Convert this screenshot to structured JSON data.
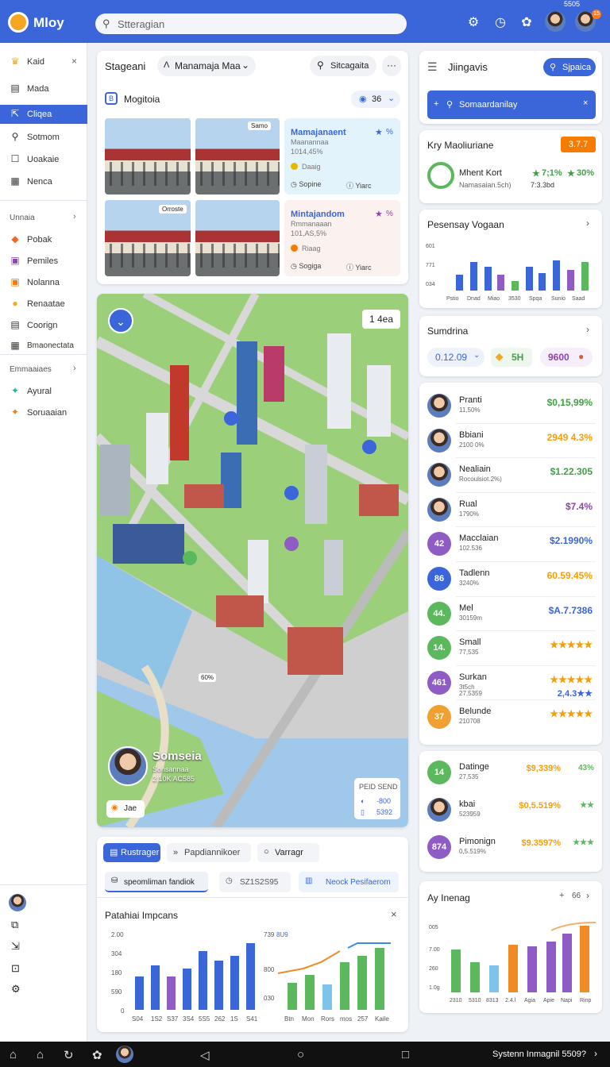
{
  "status": {
    "battery": "5505"
  },
  "app": {
    "name": "Mloy",
    "search_placeholder": "Stteragian"
  },
  "sidebar": {
    "items": [
      {
        "label": "Kaid"
      },
      {
        "label": "Mada"
      },
      {
        "label": "Cliqea"
      },
      {
        "label": "Sotmom"
      },
      {
        "label": "Uoakaie"
      },
      {
        "label": "Nenca"
      }
    ],
    "section1": "Unnaia",
    "items2": [
      {
        "label": "Pobak"
      },
      {
        "label": "Pemiles"
      },
      {
        "label": "Nolanna"
      },
      {
        "label": "Renaatae"
      },
      {
        "label": "Coorign"
      },
      {
        "label": "Bmaonectata"
      }
    ],
    "section2": "Emmaaiaes",
    "items3": [
      {
        "label": "Ayural"
      },
      {
        "label": "Soruaaian"
      }
    ]
  },
  "panel1": {
    "title": "Stageani",
    "dropdown": "Manamaja Maa",
    "search_btn": "Sitcagaita",
    "more": "···",
    "subtitle": "Mogitoia",
    "badge": "36",
    "info": [
      {
        "title": "Mamajanaent",
        "sub1": "Maanannaa",
        "sub2": "1014,45%",
        "status": "Daaig",
        "a": "Sopine",
        "b": "Yiarc",
        "pct": "%"
      },
      {
        "title": "Mintajandom",
        "sub1": "Rmmanaaan",
        "sub2": "101,AS,5%",
        "status": "Riaag",
        "a": "Sogiga",
        "b": "Yiarc",
        "pct": "%"
      }
    ],
    "thumb_tags": [
      "Samo",
      "Orroste"
    ]
  },
  "map": {
    "badge": "1 4ea",
    "profile_name": "Somseia",
    "profile_sub1": "Sonsannaa",
    "profile_sub2": "2,10K AC585",
    "tag": "Jae",
    "label": "60%",
    "stat1": "PEID SEND",
    "stat2": "-800",
    "stat3": "5392"
  },
  "panel3": {
    "btn1": "Rustrager",
    "btn2": "Papdiannikoer",
    "btn3": "Varragr",
    "f1": "speomliman fandiok",
    "f2": "SZ1S2S95",
    "f3": "Neock Pesifaerom",
    "title": "Patahiai Impcans",
    "chart1": {
      "ylabels": [
        "2.00",
        "304",
        "180",
        "590",
        "0"
      ],
      "xlabels": [
        "S04",
        "1S2",
        "S37",
        "3S4",
        "5S5",
        "262",
        "1S",
        "S41"
      ]
    },
    "chart2": {
      "ylabels": [
        "739",
        "800",
        "030"
      ],
      "top": "8U9",
      "xlabels": [
        "Btn",
        "Mon",
        "Rors",
        "mos",
        "257",
        "Kaile"
      ]
    }
  },
  "right": {
    "title": "Jiingavis",
    "btn": "Sjpaica",
    "search": "Somaardanilay",
    "kpi": {
      "title": "Kry Maoliuriane",
      "badge": "3.7.7",
      "name": "Mhent Kort",
      "sub": "Namasaian.5ch)",
      "val": "7;1%",
      "val2": "30%",
      "val3": "7:3.3bd"
    },
    "pesensay": {
      "title": "Pesensay Vogaan",
      "ylabels": [
        "601",
        "771",
        "034"
      ],
      "xlabels": [
        "Pstio",
        "Dnad",
        "Miao",
        "3530",
        "Spqa",
        "Sunio",
        "Saad"
      ]
    },
    "sumdrina": {
      "title": "Sumdrina",
      "sel": "0.12.09",
      "chip": "5H",
      "chip2": "9600"
    },
    "rows": [
      {
        "n": "Pranti",
        "s": "11,50%",
        "v": "$0,15,99%",
        "c": "#43a047"
      },
      {
        "n": "Bbiani",
        "s": "2100 0%",
        "v": "2949 4.3%",
        "c": "#f59e0b"
      },
      {
        "n": "Nealiain",
        "s": "Rocoulsiot.2%)",
        "v": "$1.22.305",
        "c": "#43a047"
      },
      {
        "n": "Rual",
        "s": "1790%",
        "v": "$7.4%",
        "c": "#8e44ad"
      },
      {
        "n": "Macclaian",
        "s": "102.536",
        "v": "$2.1990%",
        "c": "#3a66d9",
        "av": "42",
        "ac": "#8e5cc4"
      },
      {
        "n": "Tadlenn",
        "s": "3240%",
        "v": "60.59.45%",
        "c": "#f59e0b",
        "av": "86",
        "ac": "#3a66d9"
      },
      {
        "n": "Mel",
        "s": "30159m",
        "v": "$A.7.7386",
        "c": "#3a66d9",
        "av": "44.",
        "ac": "#5cb85c"
      },
      {
        "n": "Small",
        "s": "77,535",
        "v": "★★★★★",
        "c": "#f59e0b",
        "av": "14.",
        "ac": "#5cb85c"
      },
      {
        "n": "Surkan",
        "s": "3t5ch",
        "s2": "27,5359",
        "v": "★★★★★",
        "v2": "2,4.3★★",
        "c": "#f59e0b",
        "av": "461",
        "ac": "#8e5cc4"
      },
      {
        "n": "Belunde",
        "s": "210708",
        "v": "★★★★★",
        "c": "#f59e0b",
        "av": "37",
        "ac": "#f0a030"
      }
    ],
    "rows2": [
      {
        "n": "Datinge",
        "s": "27,535",
        "v": "$9,339%",
        "v2": "43%",
        "av": "14",
        "ac": "#5cb85c"
      },
      {
        "n": "kbai",
        "s": "523959",
        "v": "$0,5.519%",
        "v2": "★★",
        "av": "",
        "ac": ""
      },
      {
        "n": "Pimonign",
        "s": "0,5.519%",
        "v": "$9.3597%",
        "v2": "★★★",
        "av": "874",
        "ac": "#8e5cc4"
      }
    ],
    "ayt": {
      "title": "Ay Inenag",
      "val": "66",
      "ylabels": [
        "005",
        "7.00",
        "260",
        "1.0g"
      ],
      "xlabels": [
        "2310",
        "5310",
        "8313",
        "2.4.l",
        "Agia",
        "Apie",
        "Napi",
        "Rinp"
      ]
    }
  },
  "bottom": {
    "status": "Systenn Inmagnil 5509?"
  }
}
